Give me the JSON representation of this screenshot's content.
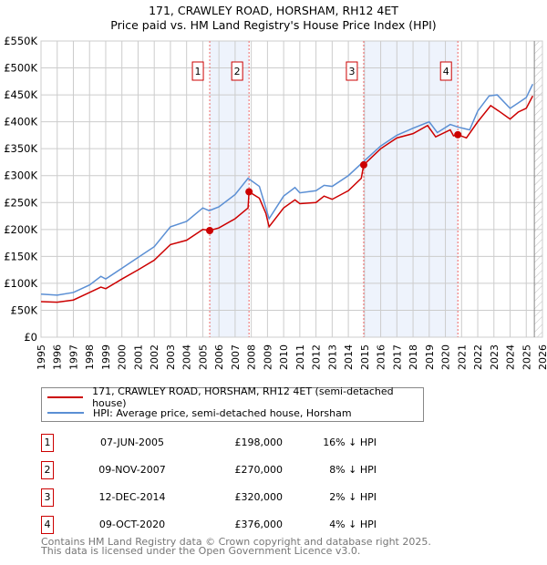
{
  "chart_data": {
    "type": "line",
    "title": "171, CRAWLEY ROAD, HORSHAM, RH12 4ET",
    "subtitle": "Price paid vs. HM Land Registry's House Price Index (HPI)",
    "xlim": [
      1995,
      2026
    ],
    "ylim": [
      0,
      550000
    ],
    "yticks": [
      0,
      50000,
      100000,
      150000,
      200000,
      250000,
      300000,
      350000,
      400000,
      450000,
      500000,
      550000
    ],
    "ytick_labels": [
      "£0",
      "£50K",
      "£100K",
      "£150K",
      "£200K",
      "£250K",
      "£300K",
      "£350K",
      "£400K",
      "£450K",
      "£500K",
      "£550K"
    ],
    "xticks": [
      1995,
      1996,
      1997,
      1998,
      1999,
      2000,
      2001,
      2002,
      2003,
      2004,
      2005,
      2006,
      2007,
      2008,
      2009,
      2010,
      2011,
      2012,
      2013,
      2014,
      2015,
      2016,
      2017,
      2018,
      2019,
      2020,
      2021,
      2022,
      2023,
      2024,
      2025,
      2026
    ],
    "grid": true,
    "series": [
      {
        "name": "171, CRAWLEY ROAD, HORSHAM, RH12 4ET (semi-detached house)",
        "color": "#cc0000",
        "x": [
          1995,
          1996,
          1997,
          1998,
          1998.7,
          1999,
          2000,
          2001,
          2002,
          2003,
          2004,
          2005,
          2005.43,
          2006,
          2007,
          2007.8,
          2007.86,
          2008.5,
          2008.9,
          2009.1,
          2010,
          2010.7,
          2011,
          2012,
          2012.5,
          2013,
          2014,
          2014.8,
          2014.95,
          2016,
          2017,
          2018,
          2018.9,
          2019.4,
          2020.3,
          2020.5,
          2020.77,
          2021.3,
          2022,
          2022.8,
          2023.3,
          2024,
          2024.5,
          2025,
          2025.4
        ],
        "y": [
          66000,
          65000,
          69000,
          83000,
          93000,
          90000,
          108000,
          125000,
          143000,
          172000,
          180000,
          200000,
          198000,
          203000,
          220000,
          240000,
          270000,
          258000,
          230000,
          205000,
          240000,
          255000,
          248000,
          250000,
          262000,
          256000,
          272000,
          295000,
          320000,
          350000,
          370000,
          378000,
          393000,
          372000,
          385000,
          374000,
          376000,
          370000,
          400000,
          430000,
          420000,
          405000,
          418000,
          425000,
          448000
        ]
      },
      {
        "name": "HPI: Average price, semi-detached house, Horsham",
        "color": "#5b8fd4",
        "x": [
          1995,
          1996,
          1997,
          1998,
          1998.7,
          1999,
          2000,
          2001,
          2002,
          2003,
          2004,
          2005,
          2005.4,
          2006,
          2007,
          2007.8,
          2008.5,
          2009.1,
          2010,
          2010.7,
          2011,
          2012,
          2012.5,
          2013,
          2014,
          2014.9,
          2016,
          2017,
          2018,
          2019,
          2019.5,
          2020.3,
          2020.8,
          2021.5,
          2022,
          2022.7,
          2023.2,
          2024,
          2024.5,
          2025,
          2025.4
        ],
        "y": [
          80000,
          78000,
          83000,
          97000,
          113000,
          108000,
          128000,
          148000,
          168000,
          205000,
          215000,
          240000,
          235000,
          242000,
          265000,
          295000,
          280000,
          220000,
          262000,
          278000,
          268000,
          272000,
          282000,
          280000,
          300000,
          325000,
          355000,
          375000,
          388000,
          400000,
          380000,
          395000,
          390000,
          385000,
          420000,
          448000,
          450000,
          425000,
          435000,
          445000,
          470000
        ]
      }
    ],
    "sales": [
      {
        "label": "1",
        "date": "07-JUN-2005",
        "x": 2005.43,
        "price": 198000,
        "price_label": "£198,000",
        "hpi_diff": "16% ↓ HPI"
      },
      {
        "label": "2",
        "date": "09-NOV-2007",
        "x": 2007.86,
        "price": 270000,
        "price_label": "£270,000",
        "hpi_diff": "8% ↓ HPI"
      },
      {
        "label": "3",
        "date": "12-DEC-2014",
        "x": 2014.95,
        "price": 320000,
        "price_label": "£320,000",
        "hpi_diff": "2% ↓ HPI"
      },
      {
        "label": "4",
        "date": "09-OCT-2020",
        "x": 2020.77,
        "price": 376000,
        "price_label": "£376,000",
        "hpi_diff": "4% ↓ HPI"
      }
    ],
    "shaded_ranges": [
      [
        2005.43,
        2007.86
      ],
      [
        2014.95,
        2020.77
      ]
    ],
    "forecast_start": 2025.5
  },
  "footer": {
    "line1": "Contains HM Land Registry data © Crown copyright and database right 2025.",
    "line2": "This data is licensed under the Open Government Licence v3.0."
  }
}
